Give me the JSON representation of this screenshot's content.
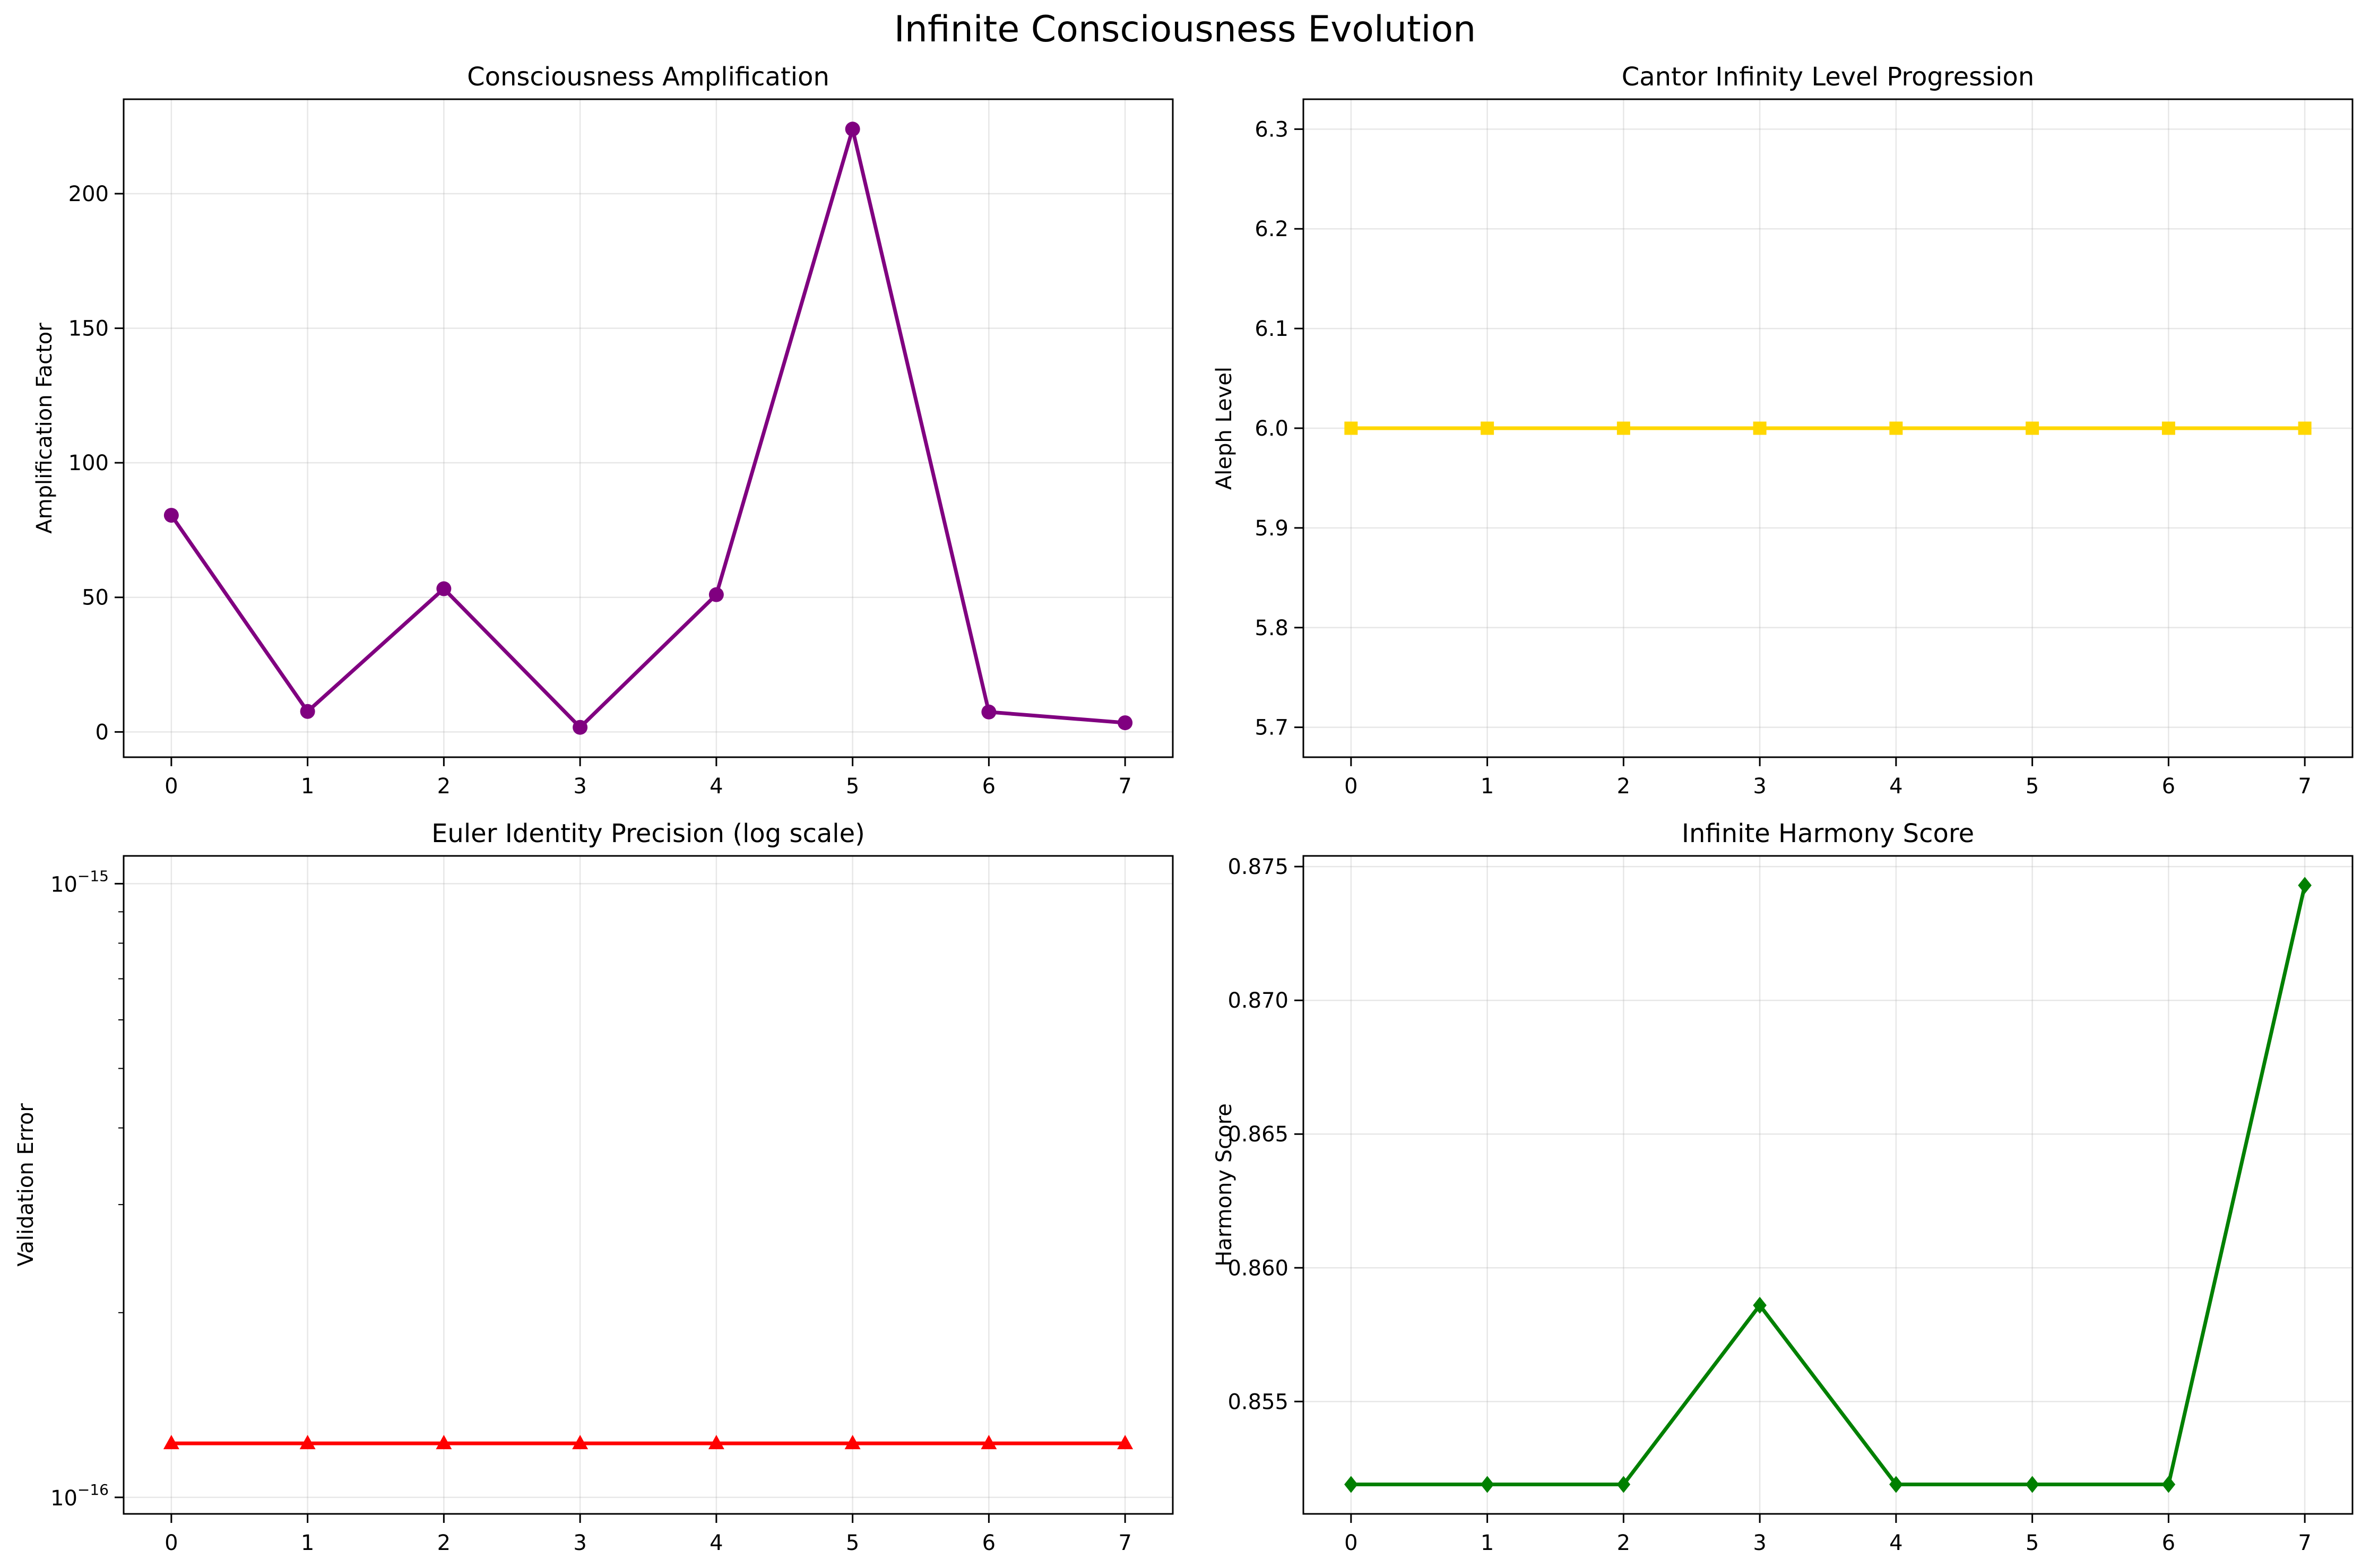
{
  "figure_title": "Infinite Consciousness Evolution",
  "chart_data": [
    {
      "type": "line",
      "title": "Consciousness Amplification",
      "xlabel": "",
      "ylabel": "Amplification Factor",
      "x": [
        0,
        1,
        2,
        3,
        4,
        5,
        6,
        7
      ],
      "series": [
        {
          "values": [
            80.5,
            7.6,
            53.2,
            1.7,
            51.0,
            224.0,
            7.4,
            3.4
          ],
          "color": "#800080",
          "marker": "circle"
        }
      ],
      "xlim": [
        -0.35,
        7.35
      ],
      "ylim": [
        -9.4,
        235.1
      ],
      "xticks": [
        0,
        1,
        2,
        3,
        4,
        5,
        6,
        7
      ],
      "yticks": [
        0,
        50,
        100,
        150,
        200
      ],
      "scale": "linear",
      "grid": true
    },
    {
      "type": "line",
      "title": "Cantor Infinity Level Progression",
      "xlabel": "",
      "ylabel": "Aleph Level",
      "x": [
        0,
        1,
        2,
        3,
        4,
        5,
        6,
        7
      ],
      "series": [
        {
          "values": [
            6.0,
            6.0,
            6.0,
            6.0,
            6.0,
            6.0,
            6.0,
            6.0
          ],
          "color": "#FFD700",
          "marker": "square"
        }
      ],
      "xlim": [
        -0.35,
        7.35
      ],
      "ylim": [
        5.67,
        6.33
      ],
      "xticks": [
        0,
        1,
        2,
        3,
        4,
        5,
        6,
        7
      ],
      "yticks": [
        5.7,
        5.8,
        5.9,
        6.0,
        6.1,
        6.2,
        6.3
      ],
      "ytick_labels": [
        "5.7",
        "5.8",
        "5.9",
        "6.0",
        "6.1",
        "6.2",
        "6.3"
      ],
      "scale": "linear",
      "grid": true
    },
    {
      "type": "line",
      "title": "Euler Identity Precision (log scale)",
      "xlabel": "",
      "ylabel": "Validation Error",
      "x": [
        0,
        1,
        2,
        3,
        4,
        5,
        6,
        7
      ],
      "series": [
        {
          "values": [
            1.2246e-16,
            1.2246e-16,
            1.2246e-16,
            1.2246e-16,
            1.2246e-16,
            1.2246e-16,
            1.2246e-16,
            1.2246e-16
          ],
          "color": "#FF0000",
          "marker": "triangle"
        }
      ],
      "xlim": [
        -0.35,
        7.35
      ],
      "ylim": [
        9.4e-17,
        1.11e-15
      ],
      "xticks": [
        0,
        1,
        2,
        3,
        4,
        5,
        6,
        7
      ],
      "yticks": [
        1e-16,
        1e-15
      ],
      "ytick_labels": [
        {
          "base": "10",
          "exp": "−16"
        },
        {
          "base": "10",
          "exp": "−15"
        }
      ],
      "scale": "log",
      "grid": true
    },
    {
      "type": "line",
      "title": "Infinite Harmony Score",
      "xlabel": "",
      "ylabel": "Harmony Score",
      "x": [
        0,
        1,
        2,
        3,
        4,
        5,
        6,
        7
      ],
      "series": [
        {
          "values": [
            0.8519,
            0.8519,
            0.8519,
            0.8586,
            0.8519,
            0.8519,
            0.8519,
            0.8743
          ],
          "color": "#008000",
          "marker": "diamond"
        }
      ],
      "xlim": [
        -0.35,
        7.35
      ],
      "ylim": [
        0.8508,
        0.8754
      ],
      "xticks": [
        0,
        1,
        2,
        3,
        4,
        5,
        6,
        7
      ],
      "yticks": [
        0.855,
        0.86,
        0.865,
        0.87,
        0.875
      ],
      "ytick_labels": [
        "0.855",
        "0.860",
        "0.865",
        "0.870",
        "0.875"
      ],
      "scale": "linear",
      "grid": true
    }
  ]
}
